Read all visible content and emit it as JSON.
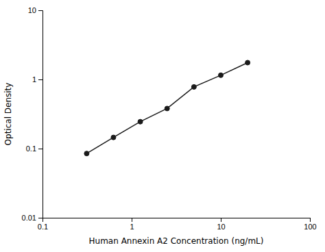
{
  "chart_data": {
    "type": "line",
    "x": [
      0.313,
      0.625,
      1.25,
      2.5,
      5.0,
      10.0,
      20.0
    ],
    "series": [
      {
        "values": [
          0.085,
          0.145,
          0.245,
          0.38,
          0.78,
          1.15,
          1.75
        ],
        "color": "#1a1a1a",
        "marker": "circle"
      }
    ],
    "xlabel": "Human Annexin A2 Concentration (ng/mL)",
    "ylabel": "Optical Density",
    "xlim": [
      0.1,
      100
    ],
    "ylim": [
      0.01,
      10
    ],
    "xticks": [
      0.1,
      1,
      10,
      100
    ],
    "yticks": [
      0.01,
      0.1,
      1,
      10
    ],
    "log": true,
    "grid": false
  }
}
